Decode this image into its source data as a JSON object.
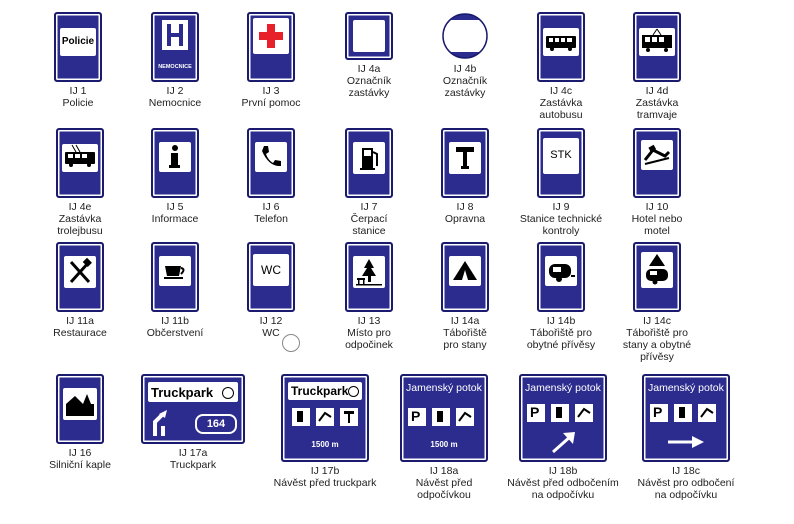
{
  "colors": {
    "sign_blue": "#2c2c8e",
    "sign_border": "#1a1a6e",
    "cross_red": "#e8202a"
  },
  "signs": [
    {
      "code": "IJ 1",
      "name": "Policie",
      "panel_text": "Policie",
      "icon": "police-text"
    },
    {
      "code": "IJ 2",
      "name": "Nemocnice",
      "panel_text": "NEMOCNICE",
      "icon": "hospital-h-icon"
    },
    {
      "code": "IJ 3",
      "name": "První pomoc",
      "icon": "red-cross-icon"
    },
    {
      "code": "IJ 4a",
      "name": "Označník\nzastávky",
      "icon": "blank-square-icon"
    },
    {
      "code": "IJ 4b",
      "name": "Označník\nzastávky",
      "icon": "blank-circle-icon"
    },
    {
      "code": "IJ 4c",
      "name": "Zastávka\nautobusu",
      "icon": "bus-icon"
    },
    {
      "code": "IJ 4d",
      "name": "Zastávka\ntramvaje",
      "icon": "tram-icon"
    },
    {
      "code": "IJ 4e",
      "name": "Zastávka\ntrolejbusu",
      "icon": "trolleybus-icon"
    },
    {
      "code": "IJ 5",
      "name": "Informace",
      "icon": "info-icon"
    },
    {
      "code": "IJ 6",
      "name": "Telefon",
      "icon": "phone-icon"
    },
    {
      "code": "IJ 7",
      "name": "Čerpací\nstanice",
      "icon": "fuel-pump-icon"
    },
    {
      "code": "IJ 8",
      "name": "Opravna",
      "icon": "wrench-icon"
    },
    {
      "code": "IJ 9",
      "name": "Stanice technické\nkontroly",
      "panel_text": "STK",
      "icon": "stk-text"
    },
    {
      "code": "IJ 10",
      "name": "Hotel nebo\nmotel",
      "icon": "bed-icon"
    },
    {
      "code": "IJ 11a",
      "name": "Restaurace",
      "icon": "fork-knife-icon"
    },
    {
      "code": "IJ 11b",
      "name": "Občerstvení",
      "icon": "cup-icon"
    },
    {
      "code": "IJ 12",
      "name": "WC",
      "panel_text": "WC",
      "icon": "wc-text"
    },
    {
      "code": "IJ  13",
      "name": "Místo pro\nodpočinek",
      "icon": "tree-bench-icon"
    },
    {
      "code": "IJ 14a",
      "name": "Tábořiště\npro stany",
      "icon": "tent-icon"
    },
    {
      "code": "IJ 14b",
      "name": "Tábořiště pro\nobytné přívěsy",
      "icon": "caravan-icon"
    },
    {
      "code": "IJ 14c",
      "name": "Tábořiště pro\nstany a obytné\npřívěsy",
      "icon": "tent-caravan-icon"
    },
    {
      "code": "IJ 16",
      "name": "Silniční kaple",
      "icon": "chapel-icon"
    },
    {
      "code": "IJ 17a",
      "name": "Truckpark",
      "panel_text": "Truckpark",
      "road_number": "164",
      "icon": "exit-arrow-icon"
    },
    {
      "code": "IJ 17b",
      "name": "Návěst před truckpark",
      "panel_text": "Truckpark",
      "distance": "1500 m",
      "icon": "truckpark-services-icon"
    },
    {
      "code": "IJ 18a",
      "name": "Návěst před\nodpočívkou",
      "panel_text": "Jamenský potok",
      "distance": "1500 m",
      "parking": "P",
      "icon": "rest-area-icon"
    },
    {
      "code": "IJ 18b",
      "name": "Návěst před odbočením\nna odpočívku",
      "panel_text": "Jamenský potok",
      "parking": "P",
      "icon": "diagonal-arrow-icon"
    },
    {
      "code": "IJ 18c",
      "name": "Návěst pro odbočení\nna odpočívku",
      "panel_text": "Jamenský potok",
      "parking": "P",
      "icon": "right-arrow-icon"
    }
  ]
}
